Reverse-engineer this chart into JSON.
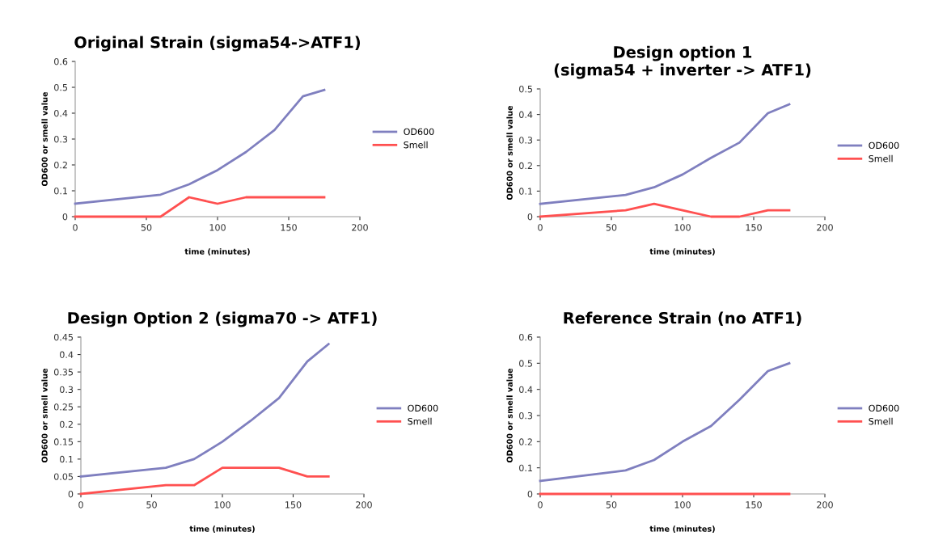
{
  "chart_data": [
    {
      "type": "line",
      "title": "Original Strain (sigma54->ATF1)",
      "xlabel": "time (minutes)",
      "ylabel": "OD600 or smell value",
      "x": [
        0,
        60,
        80,
        100,
        120,
        140,
        160,
        175
      ],
      "xlim": [
        0,
        200
      ],
      "xticks": [
        0,
        50,
        100,
        150,
        200
      ],
      "ylim": [
        0,
        0.6
      ],
      "yticks": [
        0,
        0.1,
        0.2,
        0.3,
        0.4,
        0.5,
        0.6
      ],
      "legend": "right",
      "grid": false,
      "series": [
        {
          "name": "OD600",
          "color": "#7f7fbf",
          "values": [
            0.05,
            0.085,
            0.125,
            0.18,
            0.25,
            0.335,
            0.465,
            0.49
          ]
        },
        {
          "name": "Smell",
          "color": "#ff5050",
          "values": [
            0,
            0,
            0.075,
            0.05,
            0.075,
            0.075,
            0.075,
            0.075
          ]
        }
      ]
    },
    {
      "type": "line",
      "title": "Design option 1\n(sigma54 + inverter -> ATF1)",
      "xlabel": "time (minutes)",
      "ylabel": "OD600 or smell value",
      "x": [
        0,
        60,
        80,
        100,
        120,
        140,
        160,
        175
      ],
      "xlim": [
        0,
        200
      ],
      "xticks": [
        0,
        50,
        100,
        150,
        200
      ],
      "ylim": [
        0,
        0.5
      ],
      "yticks": [
        0,
        0.1,
        0.2,
        0.3,
        0.4,
        0.5
      ],
      "legend": "right",
      "grid": false,
      "series": [
        {
          "name": "OD600",
          "color": "#7f7fbf",
          "values": [
            0.05,
            0.085,
            0.115,
            0.165,
            0.23,
            0.29,
            0.405,
            0.44
          ]
        },
        {
          "name": "Smell",
          "color": "#ff5050",
          "values": [
            0,
            0.025,
            0.05,
            0.025,
            0,
            0,
            0.025,
            0.025
          ]
        }
      ]
    },
    {
      "type": "line",
      "title": "Design Option 2 (sigma70 -> ATF1)",
      "xlabel": "time (minutes)",
      "ylabel": "OD600 or smell value",
      "x": [
        0,
        60,
        80,
        100,
        120,
        140,
        160,
        175
      ],
      "xlim": [
        0,
        200
      ],
      "xticks": [
        0,
        50,
        100,
        150,
        200
      ],
      "ylim": [
        0,
        0.45
      ],
      "yticks": [
        0,
        0.05,
        0.1,
        0.15,
        0.2,
        0.25,
        0.3,
        0.35,
        0.4,
        0.45
      ],
      "legend": "right",
      "grid": false,
      "series": [
        {
          "name": "OD600",
          "color": "#7f7fbf",
          "values": [
            0.05,
            0.075,
            0.1,
            0.15,
            0.21,
            0.275,
            0.38,
            0.43
          ]
        },
        {
          "name": "Smell",
          "color": "#ff5050",
          "values": [
            0,
            0.025,
            0.025,
            0.075,
            0.075,
            0.075,
            0.05,
            0.05
          ]
        }
      ]
    },
    {
      "type": "line",
      "title": "Reference Strain (no ATF1)",
      "xlabel": "time (minutes)",
      "ylabel": "OD600 or smell value",
      "x": [
        0,
        60,
        80,
        100,
        120,
        140,
        160,
        175
      ],
      "xlim": [
        0,
        200
      ],
      "xticks": [
        0,
        50,
        100,
        150,
        200
      ],
      "ylim": [
        0,
        0.6
      ],
      "yticks": [
        0,
        0.1,
        0.2,
        0.3,
        0.4,
        0.5,
        0.6
      ],
      "legend": "right",
      "grid": false,
      "series": [
        {
          "name": "OD600",
          "color": "#7f7fbf",
          "values": [
            0.05,
            0.09,
            0.13,
            0.2,
            0.26,
            0.36,
            0.47,
            0.5
          ]
        },
        {
          "name": "Smell",
          "color": "#ff5050",
          "values": [
            0,
            0,
            0,
            0,
            0,
            0,
            0,
            0
          ]
        }
      ]
    }
  ]
}
